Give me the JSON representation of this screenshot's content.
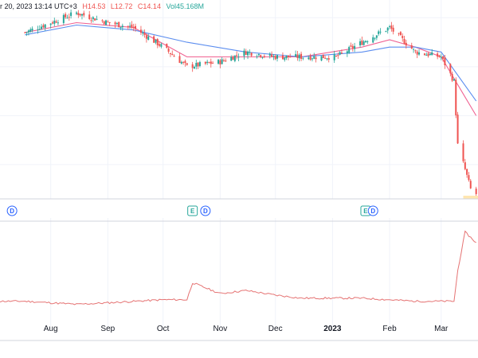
{
  "header": {
    "date_text": "r 20, 2023 13:14 UTC+3",
    "high": "H14.53",
    "low": "L12.72",
    "close": "C14.14",
    "volume": "Vol45.168M"
  },
  "colors": {
    "up": "#26a69a",
    "down": "#ef5350",
    "ma_fast": "#f06292",
    "ma_slow": "#5b8def",
    "lower_line": "#e57373",
    "grid": "#f0f3fa",
    "divider": "#d1d4dc",
    "dividend_marker": "#2962ff",
    "earnings_marker": "#26a69a",
    "last_price_band": "#ffe6b0"
  },
  "x_axis": {
    "ticks": [
      "Aug",
      "Sep",
      "Oct",
      "Nov",
      "Dec",
      "2023",
      "Feb",
      "Mar"
    ],
    "bold_tick": "2023"
  },
  "event_markers": [
    {
      "type": "dividend",
      "label": "D",
      "date": "2022-07-11"
    },
    {
      "type": "earnings",
      "label": "E",
      "date": "2022-10-17"
    },
    {
      "type": "dividend",
      "label": "D",
      "date": "2022-10-24"
    },
    {
      "type": "earnings",
      "label": "E",
      "date": "2023-01-19"
    },
    {
      "type": "dividend",
      "label": "D",
      "date": "2023-01-23"
    }
  ],
  "chart_data": {
    "type": "line",
    "price_panel": {
      "series": [
        {
          "name": "Price",
          "x": [
            "2022-07-18",
            "2022-08-01",
            "2022-08-15",
            "2022-09-01",
            "2022-09-15",
            "2022-10-01",
            "2022-10-14",
            "2022-11-01",
            "2022-11-15",
            "2022-12-01",
            "2022-12-15",
            "2023-01-03",
            "2023-01-17",
            "2023-02-01",
            "2023-02-15",
            "2023-03-01",
            "2023-03-08",
            "2023-03-10",
            "2023-03-14",
            "2023-03-17",
            "2023-03-20"
          ],
          "y": [
            47,
            49,
            51,
            49,
            48,
            44,
            40,
            41,
            43,
            42,
            42,
            42,
            45,
            48,
            43,
            42,
            37,
            24,
            19,
            15,
            14
          ]
        },
        {
          "name": "MA fast",
          "x": [
            "2022-07-18",
            "2022-08-15",
            "2022-09-15",
            "2022-10-14",
            "2022-11-15",
            "2022-12-15",
            "2023-01-17",
            "2023-02-01",
            "2023-02-15",
            "2023-03-01",
            "2023-03-20"
          ],
          "y": [
            47,
            49,
            48,
            42,
            42,
            42,
            44,
            45.5,
            44,
            42,
            30
          ]
        },
        {
          "name": "MA slow",
          "x": [
            "2022-07-18",
            "2022-08-15",
            "2022-09-15",
            "2022-10-14",
            "2022-11-15",
            "2022-12-15",
            "2023-01-17",
            "2023-02-01",
            "2023-02-15",
            "2023-03-01",
            "2023-03-20"
          ],
          "y": [
            46.5,
            48.5,
            47.5,
            45,
            43,
            42,
            43,
            44,
            44,
            43,
            33
          ]
        }
      ]
    },
    "lower_panel": {
      "series": [
        {
          "x": [
            "2022-07-18",
            "2022-08-15",
            "2022-09-01",
            "2022-10-01",
            "2022-10-14",
            "2022-10-17",
            "2022-11-01",
            "2022-11-15",
            "2022-12-01",
            "2022-12-15",
            "2023-01-17",
            "2023-02-15",
            "2023-03-08",
            "2023-03-10",
            "2023-03-14",
            "2023-03-20"
          ],
          "y": [
            1.0,
            0.8,
            0.9,
            1.1,
            1.1,
            2.2,
            1.5,
            1.7,
            1.4,
            1.2,
            1.2,
            1.0,
            1.0,
            3.0,
            5.5,
            4.8
          ]
        }
      ]
    }
  }
}
